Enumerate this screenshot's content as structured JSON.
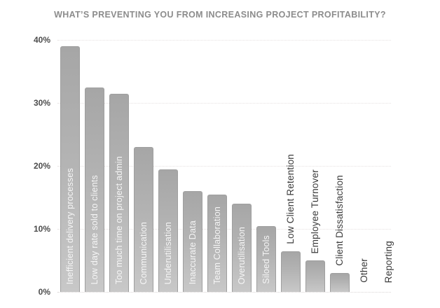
{
  "title": "WHAT’S PREVENTING YOU FROM INCREASING PROJECT PROFITABILITY?",
  "chart_data": {
    "type": "bar",
    "title": "WHAT’S PREVENTING YOU FROM INCREASING PROJECT PROFITABILITY?",
    "categories": [
      "Inefficient delivery processes",
      "Low day rate sold to clients",
      "Too much time on project admin",
      "Communication",
      "Underutilisation",
      "Inaccurate Data",
      "Team Collaboration",
      "Overutilisation",
      "Siloed Tools",
      "Low Client Retention",
      "Employee Turnover",
      "Client Dissatisfaction",
      "Other",
      "Reporting"
    ],
    "values": [
      39,
      32.5,
      31.5,
      23,
      19.5,
      16,
      15.5,
      14,
      10.5,
      6.5,
      5,
      3,
      0,
      0
    ],
    "xlabel": "",
    "ylabel": "",
    "ylim": [
      0,
      40
    ],
    "y_ticks": [
      {
        "label": "0%",
        "value": 0
      },
      {
        "label": "10%",
        "value": 10
      },
      {
        "label": "20%",
        "value": 20
      },
      {
        "label": "30%",
        "value": 30
      },
      {
        "label": "40%",
        "value": 40
      }
    ],
    "grid": "horizontal-dotted",
    "legend": "none",
    "bar_color": "#b3b3b3",
    "bar_gradient_top": "#a6a6a6",
    "bar_gradient_bottom": "#c8c8c8",
    "title_color": "#8c8c8c",
    "tick_label_color": "#4c4c4c",
    "label_inside_color": "#f6f6f6",
    "label_outside_color": "#3b3b3b",
    "label_inside_min_value": 10
  }
}
